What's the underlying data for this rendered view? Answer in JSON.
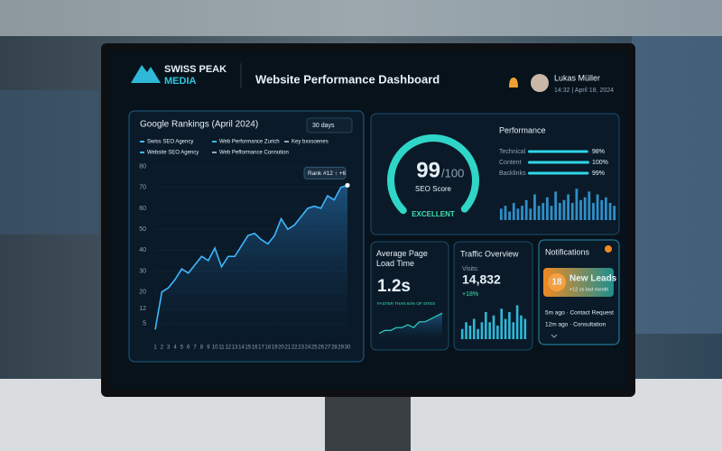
{
  "header": {
    "logo_top": "SWISS PEAK",
    "logo_bottom": "MEDIA",
    "title": "Website Performance Dashboard",
    "user_name": "Lukas Müller",
    "user_time": "14:32 | April 18, 2024"
  },
  "chart_data": {
    "type": "line",
    "title": "Google Rankings (April 2024)",
    "range_select": "30 days",
    "legend": [
      {
        "name": "Swiss SEO Agency",
        "color": "#3fb6ff"
      },
      {
        "name": "Web Performance Zurich",
        "color": "#3fb6ff"
      },
      {
        "name": "Key bxxsoenes",
        "color": "#8fa8c0"
      },
      {
        "name": "Website SEO Agency",
        "color": "#3fb6ff"
      },
      {
        "name": "Web Pefformance Connution",
        "color": "#8fa8c0"
      }
    ],
    "x": [
      1,
      2,
      3,
      4,
      5,
      6,
      7,
      8,
      9,
      10,
      11,
      12,
      13,
      14,
      15,
      16,
      17,
      18,
      19,
      20,
      21,
      22,
      23,
      24,
      25,
      26,
      27,
      28,
      29,
      30
    ],
    "values": [
      2,
      20,
      22,
      26,
      31,
      29,
      33,
      37,
      35,
      41,
      32,
      37,
      37,
      42,
      47,
      48,
      45,
      43,
      47,
      55,
      50,
      52,
      56,
      60,
      61,
      60,
      66,
      64,
      70,
      71
    ],
    "color": "#3fb6ff",
    "xlim": [
      1,
      30
    ],
    "ylim": [
      0,
      85
    ],
    "yticks": [
      5,
      12,
      20,
      30,
      40,
      50,
      60,
      70,
      80
    ],
    "annotation": "Rank #12 ↑ +6"
  },
  "seo_score": {
    "value": 99,
    "max": 100,
    "max_label": "/100",
    "label": "SEO Score",
    "rating": "EXCELLENT"
  },
  "performance": {
    "title": "Performance",
    "categories": [
      "Technical",
      "Content",
      "Backlinks"
    ],
    "values": [
      98,
      100,
      99
    ],
    "value_labels": [
      "98%",
      "100%",
      "99%"
    ],
    "xlim": [
      0,
      100
    ],
    "activity": {
      "values": [
        4,
        5,
        3,
        6,
        4,
        5,
        7,
        4,
        9,
        5,
        6,
        8,
        5,
        10,
        6,
        7,
        9,
        6,
        11,
        7,
        8,
        10,
        6,
        9,
        7,
        8,
        6,
        5
      ],
      "ylim": [
        0,
        12
      ]
    }
  },
  "load_time": {
    "title": "Average Page Load Time",
    "value": "1.2s",
    "note": "FASTER THAN 84% OF SITES",
    "trend": {
      "values": [
        2,
        3,
        3,
        4,
        4,
        5,
        4,
        6,
        6,
        7,
        8,
        9
      ],
      "ylim": [
        0,
        10
      ]
    }
  },
  "traffic": {
    "title": "Traffic Overview",
    "label": "Visits:",
    "value": "14,832",
    "change": "+18%",
    "bars": {
      "values": [
        3,
        5,
        4,
        6,
        3,
        5,
        8,
        5,
        7,
        4,
        9,
        6,
        8,
        5,
        10,
        7,
        6
      ],
      "ylim": [
        0,
        12
      ]
    }
  },
  "notifications": {
    "title": "Notifications",
    "badge_count": "18",
    "badge_title": "New Leads",
    "badge_sub": "+12 vs last month",
    "items": [
      "5m ago · Contact Request",
      "12m ago · Consultation"
    ]
  }
}
